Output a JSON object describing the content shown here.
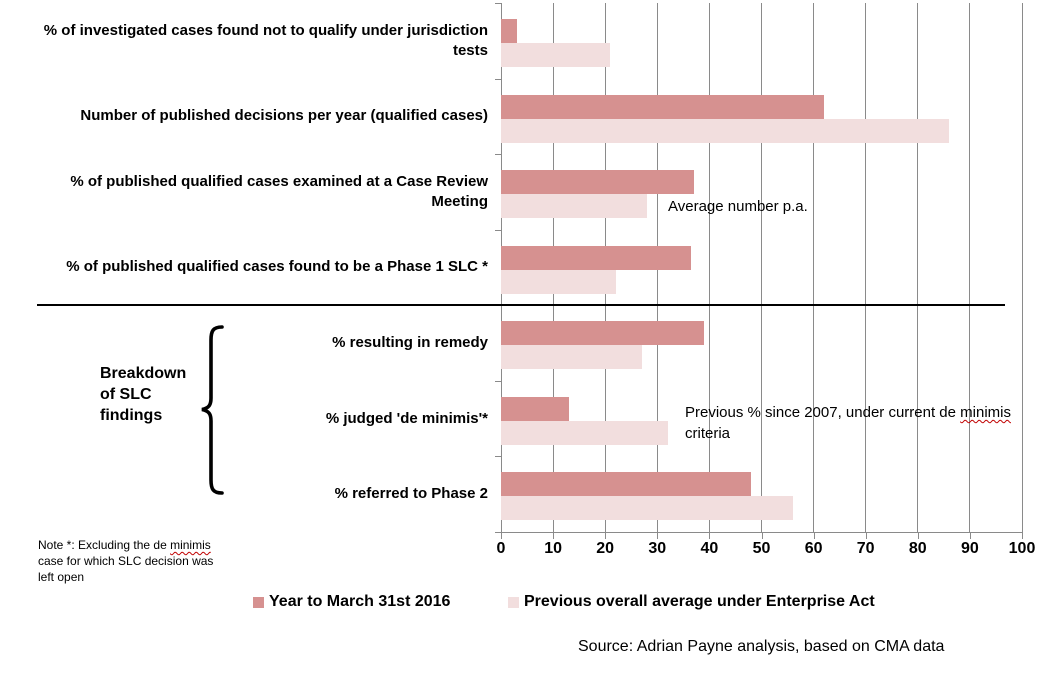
{
  "chart_data": {
    "type": "bar",
    "orientation": "horizontal",
    "title": "",
    "xlabel": "",
    "ylabel": "",
    "xlim": [
      0,
      100
    ],
    "x_ticks": [
      0,
      10,
      20,
      30,
      40,
      50,
      60,
      70,
      80,
      90,
      100
    ],
    "grid": "vertical",
    "legend_position": "bottom",
    "categories": [
      "% of investigated cases found not to qualify under jurisdiction tests",
      "Number of published decisions per year (qualified cases)",
      "% of published qualified cases examined at a Case Review Meeting",
      "% of published qualified cases found to be a Phase 1 SLC *",
      "% resulting in remedy",
      "% judged 'de minimis'*",
      "% referred to Phase 2"
    ],
    "series": [
      {
        "name": "Year to March 31st 2016",
        "color": "#d69190",
        "values": [
          3,
          62,
          37,
          36.5,
          39,
          13,
          48
        ]
      },
      {
        "name": "Previous overall average under Enterprise Act",
        "color": "#f2dede",
        "values": [
          21,
          86,
          28,
          22,
          27,
          32,
          56
        ]
      }
    ],
    "group_section": {
      "label_lines": [
        "Breakdown",
        "of SLC",
        "findings"
      ],
      "applies_to_categories": [
        "% resulting in remedy",
        "% judged 'de minimis'*",
        "% referred to Phase 2"
      ]
    }
  },
  "annotations": {
    "average_number": "Average number p.a.",
    "previous_pct": {
      "line1_before": "Previous % since 2007, under  current de ",
      "line1_word": "minimis",
      "line2": "criteria"
    }
  },
  "note": {
    "line1_before": "Note *: Excluding  the de ",
    "line1_word": "minimis",
    "line2": "case for which SLC decision was",
    "line3": "left open"
  },
  "breakdown": {
    "lines": [
      "Breakdown",
      "of SLC",
      "findings"
    ]
  },
  "source": {
    "text": "Source: Adrian Payne analysis, based on CMA data"
  },
  "colors": {
    "series_dark": "#d69190",
    "series_light": "#f2dede",
    "gridline": "#8a8a8a",
    "divider": "#000000",
    "squiggle": "#c00000"
  }
}
